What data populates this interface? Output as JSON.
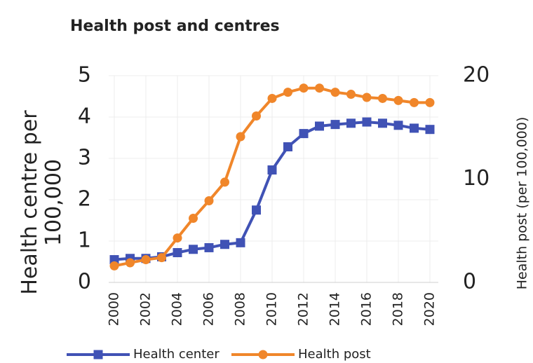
{
  "chart_data": {
    "type": "line",
    "title": "Health post and centres",
    "ylabel": "Health centre per 100,000",
    "y2label": "Health post (per 100,000)",
    "x": [
      2000,
      2001,
      2002,
      2003,
      2004,
      2005,
      2006,
      2007,
      2008,
      2009,
      2010,
      2011,
      2012,
      2013,
      2014,
      2015,
      2016,
      2017,
      2018,
      2019,
      2020
    ],
    "xlim": [
      2000,
      2020
    ],
    "xticks": [
      2000,
      2002,
      2004,
      2006,
      2008,
      2010,
      2012,
      2014,
      2016,
      2018,
      2020
    ],
    "ylim": [
      0,
      5
    ],
    "yticks": [
      0,
      1,
      2,
      3,
      4,
      5
    ],
    "y2lim": [
      0,
      20
    ],
    "y2ticks": [
      0,
      10,
      20
    ],
    "grid": true,
    "legend": "bottom",
    "series": [
      {
        "name": "Health center",
        "color": "#4052b5",
        "marker": "square",
        "values": [
          0.55,
          0.58,
          0.58,
          0.62,
          0.72,
          0.8,
          0.84,
          0.92,
          0.96,
          1.75,
          2.72,
          3.28,
          3.6,
          3.78,
          3.82,
          3.85,
          3.88,
          3.85,
          3.8,
          3.73,
          3.7
        ]
      },
      {
        "name": "Health post",
        "color": "#f0862a",
        "marker": "circle",
        "axis": "y2",
        "values": [
          1.6,
          1.9,
          2.2,
          2.4,
          4.3,
          6.2,
          7.9,
          9.7,
          14.1,
          16.1,
          17.8,
          18.4,
          18.8,
          18.8,
          18.4,
          18.2,
          17.9,
          17.8,
          17.6,
          17.4,
          17.4
        ]
      }
    ]
  }
}
